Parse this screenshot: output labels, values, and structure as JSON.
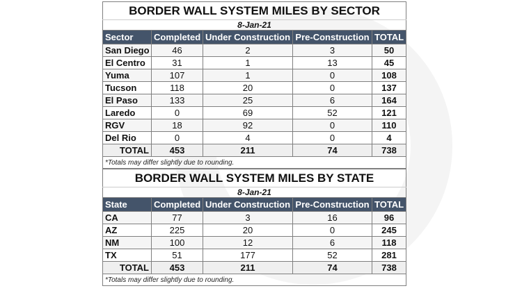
{
  "columns": [
    "Completed",
    "Under Construction",
    "Pre-Construction",
    "TOTAL"
  ],
  "sector_table": {
    "title": "BORDER WALL SYSTEM MILES BY SECTOR",
    "date": "8-Jan-21",
    "first_header": "Sector",
    "rows": [
      [
        "San Diego",
        "46",
        "2",
        "3",
        "50"
      ],
      [
        "El Centro",
        "31",
        "1",
        "13",
        "45"
      ],
      [
        "Yuma",
        "107",
        "1",
        "0",
        "108"
      ],
      [
        "Tucson",
        "118",
        "20",
        "0",
        "137"
      ],
      [
        "El Paso",
        "133",
        "25",
        "6",
        "164"
      ],
      [
        "Laredo",
        "0",
        "69",
        "52",
        "121"
      ],
      [
        "RGV",
        "18",
        "92",
        "0",
        "110"
      ],
      [
        "Del Rio",
        "0",
        "4",
        "0",
        "4"
      ]
    ],
    "total": [
      "TOTAL",
      "453",
      "211",
      "74",
      "738"
    ],
    "note": "*Totals may differ slightly due to rounding."
  },
  "state_table": {
    "title": "BORDER WALL SYSTEM MILES BY STATE",
    "date": "8-Jan-21",
    "first_header": "State",
    "rows": [
      [
        "CA",
        "77",
        "3",
        "16",
        "96"
      ],
      [
        "AZ",
        "225",
        "20",
        "0",
        "245"
      ],
      [
        "NM",
        "100",
        "12",
        "6",
        "118"
      ],
      [
        "TX",
        "51",
        "177",
        "52",
        "281"
      ]
    ],
    "total": [
      "TOTAL",
      "453",
      "211",
      "74",
      "738"
    ],
    "note": "*Totals may differ slightly due to rounding."
  },
  "colors": {
    "header_bg": "#44546a",
    "header_text": "#ffffff"
  }
}
